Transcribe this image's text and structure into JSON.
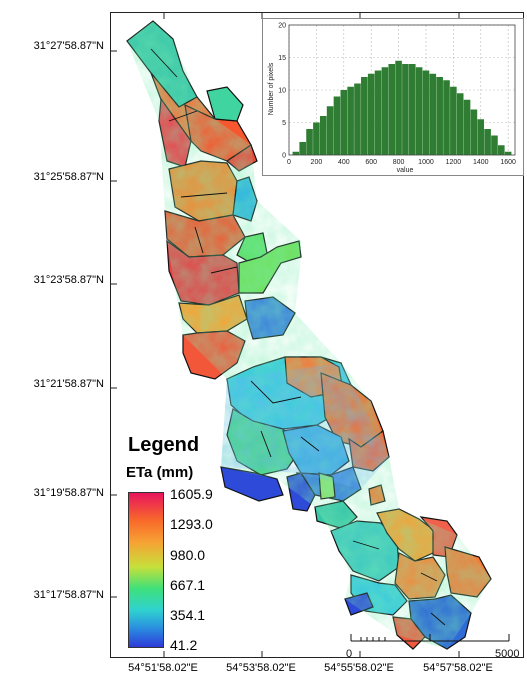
{
  "map": {
    "lat_labels": [
      "31°27'58.87\"N",
      "31°25'58.87\"N",
      "31°23'58.87\"N",
      "31°21'58.87\"N",
      "31°19'58.87\"N",
      "31°17'58.87\"N"
    ],
    "lon_labels": [
      "54°51'58.02\"E",
      "54°53'58.02\"E",
      "54°55'58.02\"E",
      "54°57'58.02\"E"
    ]
  },
  "legend": {
    "title": "Legend",
    "subtitle": "ETa (mm)",
    "ramp_values": [
      "1605.9",
      "1293.0",
      "980.0",
      "667.1",
      "354.1",
      "41.2"
    ],
    "ramp_colors": [
      "#e8155c",
      "#f86a2a",
      "#f7a234",
      "#c6e03a",
      "#3fe07a",
      "#2fd2cf",
      "#2a8de0",
      "#2d3ad8"
    ]
  },
  "scalebar": {
    "start_label": "0",
    "end_label": "5000"
  },
  "chart_data": {
    "type": "bar",
    "xlabel": "value",
    "ylabel": "Number of pixels",
    "xlim": [
      0,
      1650
    ],
    "ylim": [
      0,
      20
    ],
    "xticks": [
      0,
      200,
      400,
      600,
      800,
      1000,
      1200,
      1400,
      1600
    ],
    "yticks": [
      0,
      5,
      10,
      15,
      20
    ],
    "grid": true,
    "color": "#2e7d32",
    "x": [
      50,
      100,
      150,
      200,
      250,
      300,
      350,
      400,
      450,
      500,
      550,
      600,
      650,
      700,
      750,
      800,
      850,
      900,
      950,
      1000,
      1050,
      1100,
      1150,
      1200,
      1250,
      1300,
      1350,
      1400,
      1450,
      1500,
      1550,
      1600
    ],
    "values": [
      0.5,
      2,
      4,
      5,
      6,
      7.5,
      9,
      10,
      10.5,
      11,
      12,
      12.5,
      13,
      13.5,
      14,
      14.5,
      14,
      14,
      13.5,
      13,
      12.5,
      12,
      11.5,
      10.5,
      9.5,
      8.5,
      7,
      5.5,
      4,
      3,
      1.5,
      0.5
    ]
  }
}
